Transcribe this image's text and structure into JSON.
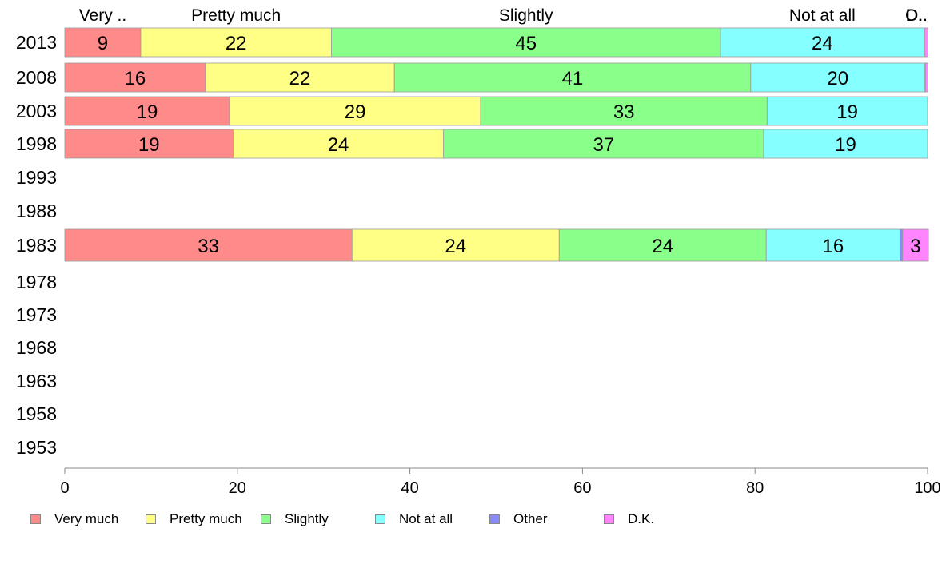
{
  "chart_data": {
    "type": "bar",
    "orientation": "horizontal",
    "stacked": true,
    "title": "",
    "xlabel": "",
    "ylabel": "",
    "xlim": [
      0,
      100
    ],
    "x_ticks": [
      0,
      20,
      40,
      60,
      80,
      100
    ],
    "categories": [
      "2013",
      "2008",
      "2003",
      "1998",
      "1993",
      "1988",
      "1983",
      "1978",
      "1973",
      "1968",
      "1963",
      "1958",
      "1953"
    ],
    "series": [
      {
        "name": "Very much",
        "short_label": "Very ..",
        "color": "#ff8a8a",
        "values": [
          8.8,
          16.3,
          19.1,
          19.5,
          null,
          null,
          33.3,
          null,
          null,
          null,
          null,
          null,
          null
        ],
        "labels": [
          "9",
          "16",
          "19",
          "19",
          "",
          "",
          "33",
          "",
          "",
          "",
          "",
          "",
          ""
        ]
      },
      {
        "name": "Pretty much",
        "short_label": "Pretty much",
        "color": "#ffff85",
        "values": [
          22.1,
          21.9,
          29.1,
          24.4,
          null,
          null,
          24.0,
          null,
          null,
          null,
          null,
          null,
          null
        ],
        "labels": [
          "22",
          "22",
          "29",
          "24",
          "",
          "",
          "24",
          "",
          "",
          "",
          "",
          "",
          ""
        ]
      },
      {
        "name": "Slightly",
        "short_label": "Slightly",
        "color": "#8aff8a",
        "values": [
          45.1,
          41.3,
          33.2,
          37.1,
          null,
          null,
          24.0,
          null,
          null,
          null,
          null,
          null,
          null
        ],
        "labels": [
          "45",
          "41",
          "33",
          "37",
          "",
          "",
          "24",
          "",
          "",
          "",
          "",
          "",
          ""
        ]
      },
      {
        "name": "Not at all",
        "short_label": "Not at all",
        "color": "#85ffff",
        "values": [
          23.6,
          20.2,
          18.6,
          19.0,
          null,
          null,
          15.5,
          null,
          null,
          null,
          null,
          null,
          null
        ],
        "labels": [
          "24",
          "20",
          "19",
          "19",
          "",
          "",
          "16",
          "",
          "",
          "",
          "",
          "",
          ""
        ]
      },
      {
        "name": "Other",
        "short_label": "O..",
        "color": "#8a8aff",
        "values": [
          0.05,
          0.05,
          0,
          0,
          null,
          null,
          0.3,
          null,
          null,
          null,
          null,
          null,
          null
        ],
        "labels": [
          "",
          "",
          "",
          "",
          "",
          "",
          "",
          "",
          "",
          "",
          "",
          "",
          ""
        ]
      },
      {
        "name": "D.K.",
        "short_label": "D..",
        "color": "#ff85ff",
        "values": [
          0.4,
          0.3,
          0,
          0,
          null,
          null,
          3.0,
          null,
          null,
          null,
          null,
          null,
          null
        ],
        "labels": [
          "",
          "",
          "",
          "",
          "",
          "",
          "3",
          "",
          "",
          "",
          "",
          "",
          ""
        ]
      }
    ],
    "legend": "bottom",
    "grid": false
  }
}
